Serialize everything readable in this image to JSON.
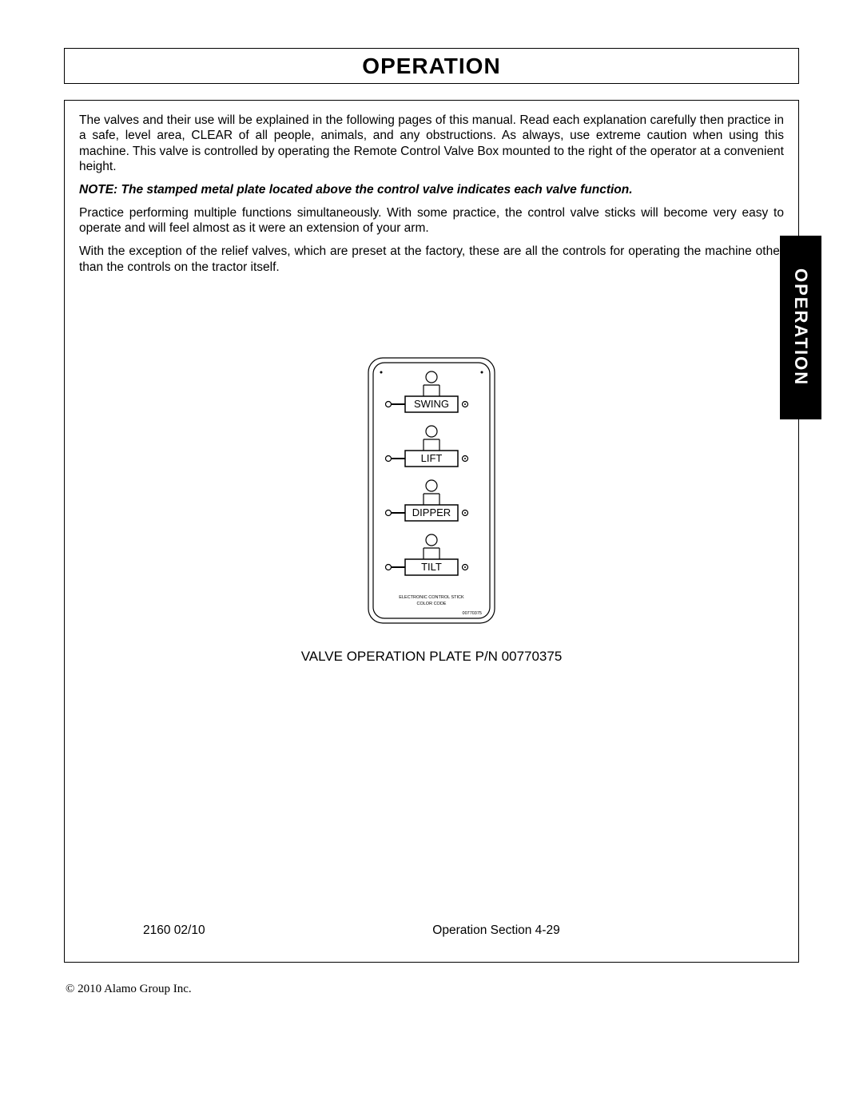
{
  "title": "OPERATION",
  "sideTab": "OPERATION",
  "paragraphs": {
    "p1": "The valves and their use will be explained in the following pages of this manual. Read each explanation carefully then practice in a safe, level area, CLEAR of all people, animals, and any obstructions. As always, use extreme caution when using this machine. This valve is controlled by operating the Remote Control Valve Box mounted to the right of the operator at a convenient height.",
    "note": "NOTE: The stamped metal plate located above the control valve indicates each valve function.",
    "p2": "Practice performing multiple functions simultaneously. With some practice, the control valve sticks will become very easy to operate and will feel almost as it were an extension of your arm.",
    "p3": "With the exception of the relief valves, which are preset at the factory, these are all the controls for operating the machine other than the controls on the tractor itself."
  },
  "diagram": {
    "caption": "VALVE OPERATION PLATE P/N 00770375",
    "valves": [
      "SWING",
      "LIFT",
      "DIPPER",
      "TILT"
    ],
    "bottomLine1": "ELECTRONIC CONTROL STICK",
    "bottomLine2": "COLOR CODE",
    "partNum": "00770375"
  },
  "footer": {
    "left": "2160   02/10",
    "center": "Operation Section 4-29"
  },
  "copyright": "© 2010 Alamo Group Inc.",
  "colors": {
    "text": "#000000",
    "bg": "#ffffff",
    "tabBg": "#000000",
    "tabText": "#ffffff"
  }
}
